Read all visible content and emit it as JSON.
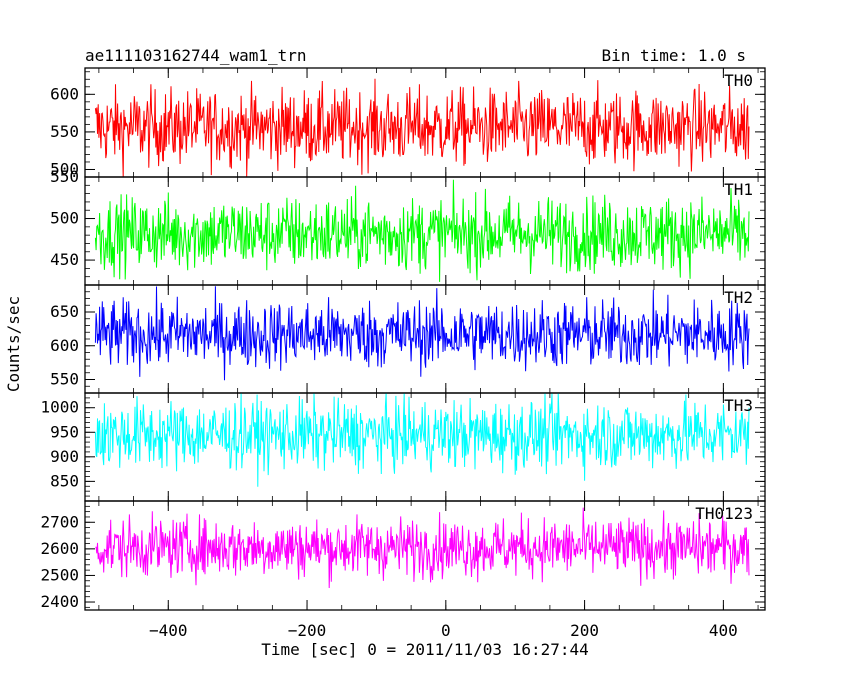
{
  "chart_data": {
    "type": "line",
    "title": "ae111103162744_wam1_trn",
    "subtitle": "Bin time: 1.0 s",
    "xlabel": "Time [sec] 0 = 2011/11/03 16:27:44",
    "ylabel": "Counts/sec",
    "xlim": [
      -520,
      460
    ],
    "data_x_range": [
      -505,
      437
    ],
    "x_ticks": [
      -400,
      -200,
      0,
      200,
      400
    ],
    "grid": false,
    "panels": [
      {
        "name": "TH0",
        "color": "#ff0000",
        "ylim": [
          490,
          635
        ],
        "ticks": [
          500,
          550,
          600
        ],
        "mean": 556,
        "spread": 50
      },
      {
        "name": "TH1",
        "color": "#00ff00",
        "ylim": [
          420,
          550
        ],
        "ticks": [
          450,
          500,
          550
        ],
        "mean": 482,
        "spread": 44
      },
      {
        "name": "TH2",
        "color": "#0000ff",
        "ylim": [
          530,
          690
        ],
        "ticks": [
          550,
          600,
          650
        ],
        "mean": 617,
        "spread": 50
      },
      {
        "name": "TH3",
        "color": "#00ffff",
        "ylim": [
          810,
          1030
        ],
        "ticks": [
          850,
          900,
          950,
          1000
        ],
        "mean": 945,
        "spread": 70
      },
      {
        "name": "TH0123",
        "color": "#ff00ff",
        "ylim": [
          2370,
          2780
        ],
        "ticks": [
          2400,
          2500,
          2600,
          2700
        ],
        "mean": 2605,
        "spread": 110
      }
    ]
  }
}
